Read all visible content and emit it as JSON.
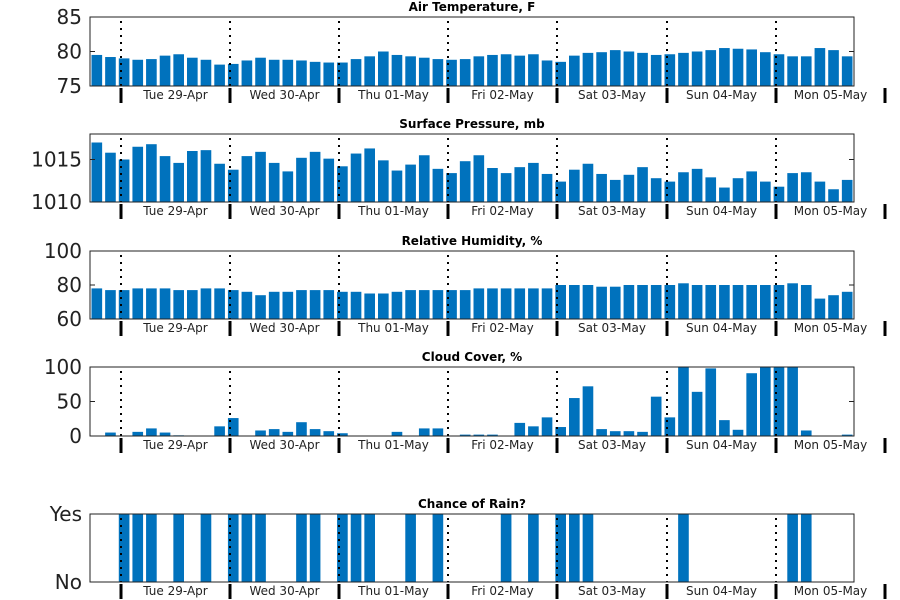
{
  "chart_data": [
    {
      "type": "bar",
      "title": "Air Temperature, F",
      "ylim": [
        75,
        85
      ],
      "yticks": [
        75,
        80,
        85
      ],
      "ytick_labels": [
        "75",
        "80",
        "85"
      ],
      "days": [
        "Tue 29-Apr",
        "Wed 30-Apr",
        "Thu 01-May",
        "Fri 02-May",
        "Sat 03-May",
        "Sun 04-May",
        "Mon 05-May"
      ],
      "values": [
        79.5,
        79.2,
        79.0,
        78.8,
        78.9,
        79.4,
        79.6,
        79.1,
        78.8,
        78.1,
        78.2,
        78.7,
        79.1,
        78.8,
        78.8,
        78.7,
        78.5,
        78.4,
        78.4,
        78.9,
        79.3,
        80.0,
        79.5,
        79.3,
        79.1,
        78.9,
        78.8,
        78.9,
        79.3,
        79.5,
        79.6,
        79.4,
        79.6,
        78.7,
        78.5,
        79.4,
        79.8,
        79.9,
        80.2,
        80.0,
        79.8,
        79.5,
        79.6,
        79.8,
        80.0,
        80.2,
        80.5,
        80.4,
        80.3,
        79.9,
        79.6,
        79.3,
        79.3,
        80.5,
        80.2,
        79.3
      ]
    },
    {
      "type": "bar",
      "title": "Surface Pressure, mb",
      "ylim": [
        1010,
        1018
      ],
      "yticks": [
        1010,
        1015
      ],
      "ytick_labels": [
        "1010",
        "1015"
      ],
      "days": [
        "Tue 29-Apr",
        "Wed 30-Apr",
        "Thu 01-May",
        "Fri 02-May",
        "Sat 03-May",
        "Sun 04-May",
        "Mon 05-May"
      ],
      "values": [
        1017.0,
        1015.8,
        1015.0,
        1016.5,
        1016.8,
        1015.4,
        1014.6,
        1016.0,
        1016.1,
        1014.5,
        1013.8,
        1015.4,
        1015.9,
        1014.6,
        1013.6,
        1015.2,
        1015.9,
        1015.1,
        1014.2,
        1015.7,
        1016.3,
        1014.9,
        1013.7,
        1014.4,
        1015.5,
        1013.9,
        1013.4,
        1014.8,
        1015.5,
        1014.0,
        1013.4,
        1014.1,
        1014.6,
        1013.3,
        1012.4,
        1013.8,
        1014.5,
        1013.3,
        1012.6,
        1013.2,
        1014.1,
        1012.8,
        1012.4,
        1013.5,
        1013.9,
        1012.9,
        1011.7,
        1012.8,
        1013.6,
        1012.4,
        1011.8,
        1013.4,
        1013.5,
        1012.4,
        1011.5,
        1012.6
      ]
    },
    {
      "type": "bar",
      "title": "Relative Humidity, %",
      "ylim": [
        60,
        100
      ],
      "yticks": [
        60,
        80,
        100
      ],
      "ytick_labels": [
        "60",
        "80",
        "100"
      ],
      "days": [
        "Tue 29-Apr",
        "Wed 30-Apr",
        "Thu 01-May",
        "Fri 02-May",
        "Sat 03-May",
        "Sun 04-May",
        "Mon 05-May"
      ],
      "values": [
        78,
        77,
        77,
        78,
        78,
        78,
        77,
        77,
        78,
        78,
        77,
        76,
        74,
        76,
        76,
        77,
        77,
        77,
        76,
        76,
        75,
        75,
        76,
        77,
        77,
        77,
        77,
        77,
        78,
        78,
        78,
        78,
        78,
        78,
        80,
        80,
        80,
        79,
        79,
        80,
        80,
        80,
        80,
        81,
        80,
        80,
        80,
        80,
        80,
        80,
        80,
        81,
        80,
        72,
        74,
        76
      ]
    },
    {
      "type": "bar",
      "title": "Cloud Cover, %",
      "ylim": [
        0,
        100
      ],
      "yticks": [
        0,
        50,
        100
      ],
      "ytick_labels": [
        "0",
        "50",
        "100"
      ],
      "days": [
        "Tue 29-Apr",
        "Wed 30-Apr",
        "Thu 01-May",
        "Fri 02-May",
        "Sat 03-May",
        "Sun 04-May",
        "Mon 05-May"
      ],
      "values": [
        0,
        5,
        0,
        6,
        11,
        5,
        1,
        0,
        0,
        14,
        26,
        0,
        8,
        10,
        6,
        20,
        10,
        7,
        4,
        0,
        0,
        0,
        6,
        0,
        11,
        11,
        0,
        2,
        2,
        2,
        0,
        19,
        14,
        27,
        13,
        55,
        72,
        10,
        7,
        7,
        6,
        57,
        27,
        100,
        64,
        98,
        23,
        9,
        91,
        100,
        100,
        100,
        8,
        0,
        0,
        2
      ]
    },
    {
      "type": "bar",
      "title": "Chance of Rain?",
      "ylim": [
        0,
        1
      ],
      "yticks": [
        0,
        1
      ],
      "ytick_labels": [
        "No",
        "Yes"
      ],
      "days": [
        "Tue 29-Apr",
        "Wed 30-Apr",
        "Thu 01-May",
        "Fri 02-May",
        "Sat 03-May",
        "Sun 04-May",
        "Mon 05-May"
      ],
      "values": [
        0,
        0,
        1,
        1,
        1,
        0,
        1,
        0,
        1,
        0,
        1,
        1,
        1,
        0,
        0,
        1,
        1,
        0,
        1,
        1,
        1,
        0,
        0,
        1,
        0,
        1,
        0,
        0,
        0,
        0,
        1,
        0,
        1,
        0,
        1,
        1,
        1,
        0,
        0,
        0,
        0,
        0,
        0,
        1,
        0,
        0,
        0,
        0,
        0,
        0,
        0,
        1,
        1,
        0,
        0,
        0
      ]
    }
  ]
}
